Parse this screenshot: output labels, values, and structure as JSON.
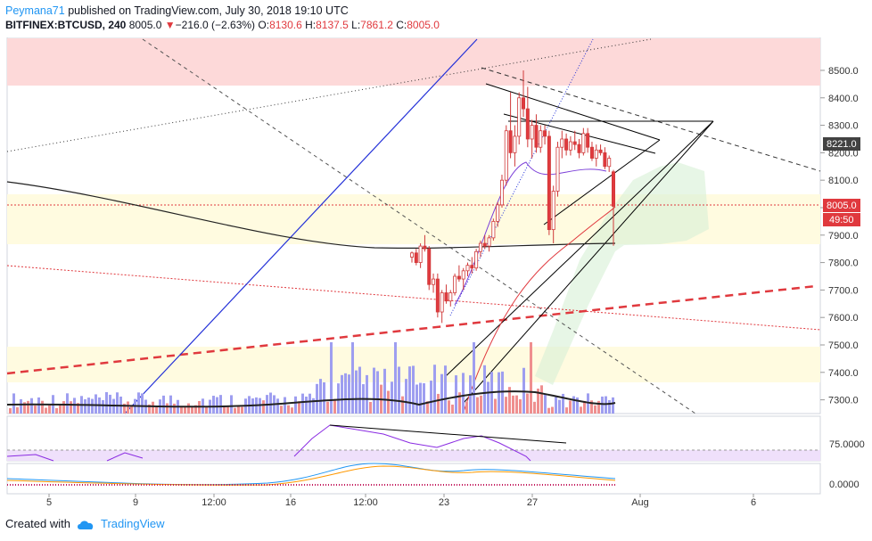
{
  "header": {
    "author": "Peymana71",
    "published_text": "published on TradingView.com, July 30, 2018 19:10 UTC",
    "symbol": "BITFINEX:BTCUSD, 240",
    "last": "8005.0",
    "change": "−216.0 (−2.63%)",
    "o_label": "O:",
    "o": "8130.6",
    "h_label": "H:",
    "h": "8137.5",
    "l_label": "L:",
    "l": "7861.2",
    "c_label": "C:",
    "c": "8005.0"
  },
  "footer": {
    "created_with": "Created with",
    "brand": "TradingView",
    "icon": "tradingview-cloud-icon"
  },
  "colors": {
    "up": "#2962ff",
    "down": "#e0393e",
    "bull_bar": "#9e9ef0",
    "bear_bar": "#ef8f8f",
    "accent": "#2196f3"
  },
  "chart_data": {
    "type": "candlestick",
    "symbol": "BITFINEX:BTCUSD",
    "interval": "240",
    "y_ticks": [
      "8500.0",
      "8400.0",
      "8300.0",
      "8200.0",
      "8100.0",
      "8000.0",
      "7900.0",
      "7800.0",
      "7700.0",
      "7600.0",
      "7500.0",
      "7400.0",
      "7300.0"
    ],
    "ylim": [
      7250,
      8620
    ],
    "x_ticks": [
      "5",
      "9",
      "12:00",
      "16",
      "12:00",
      "23",
      "27",
      "Aug",
      "6"
    ],
    "price_labels": {
      "level_8221": "8221.0",
      "last": "8005.0",
      "countdown": "49:50"
    },
    "rsi_ticks": [
      "75.0000"
    ],
    "macd_ticks": [
      "0.0000"
    ],
    "candles": [
      [
        7820,
        7840,
        7800,
        7835
      ],
      [
        7835,
        7850,
        7790,
        7800
      ],
      [
        7800,
        7870,
        7780,
        7860
      ],
      [
        7860,
        7900,
        7840,
        7850
      ],
      [
        7850,
        7860,
        7700,
        7720
      ],
      [
        7720,
        7760,
        7690,
        7740
      ],
      [
        7740,
        7760,
        7600,
        7620
      ],
      [
        7620,
        7700,
        7580,
        7690
      ],
      [
        7690,
        7720,
        7650,
        7660
      ],
      [
        7660,
        7700,
        7640,
        7690
      ],
      [
        7690,
        7760,
        7680,
        7750
      ],
      [
        7750,
        7790,
        7730,
        7740
      ],
      [
        7740,
        7780,
        7700,
        7770
      ],
      [
        7770,
        7800,
        7750,
        7790
      ],
      [
        7790,
        7820,
        7760,
        7780
      ],
      [
        7780,
        7850,
        7770,
        7840
      ],
      [
        7840,
        7880,
        7820,
        7870
      ],
      [
        7870,
        7900,
        7850,
        7860
      ],
      [
        7860,
        7900,
        7840,
        7890
      ],
      [
        7890,
        7960,
        7880,
        7950
      ],
      [
        7950,
        8020,
        7930,
        8010
      ],
      [
        8010,
        8120,
        8000,
        8100
      ],
      [
        8100,
        8300,
        8080,
        8280
      ],
      [
        8280,
        8420,
        8180,
        8200
      ],
      [
        8200,
        8300,
        8150,
        8260
      ],
      [
        8260,
        8420,
        8230,
        8400
      ],
      [
        8400,
        8500,
        8330,
        8360
      ],
      [
        8360,
        8440,
        8220,
        8250
      ],
      [
        8250,
        8320,
        8180,
        8300
      ],
      [
        8300,
        8340,
        8200,
        8220
      ],
      [
        8220,
        8300,
        8200,
        8280
      ],
      [
        8280,
        8300,
        8230,
        8260
      ],
      [
        8260,
        8280,
        7900,
        7920
      ],
      [
        7920,
        8080,
        7870,
        8060
      ],
      [
        8060,
        8240,
        8040,
        8220
      ],
      [
        8220,
        8280,
        8180,
        8250
      ],
      [
        8250,
        8270,
        8190,
        8210
      ],
      [
        8210,
        8260,
        8190,
        8240
      ],
      [
        8240,
        8280,
        8210,
        8230
      ],
      [
        8230,
        8250,
        8180,
        8200
      ],
      [
        8200,
        8290,
        8190,
        8270
      ],
      [
        8270,
        8290,
        8200,
        8220
      ],
      [
        8220,
        8240,
        8170,
        8180
      ],
      [
        8180,
        8230,
        8150,
        8210
      ],
      [
        8210,
        8230,
        8190,
        8200
      ],
      [
        8200,
        8220,
        8140,
        8150
      ],
      [
        8150,
        8190,
        8130,
        8180
      ],
      [
        8130.6,
        8137.5,
        7861.2,
        8005.0
      ]
    ],
    "annotations": [
      "ichimoku cloud",
      "support/resistance zones",
      "trend lines",
      "rising wedge",
      "RSI divergence line"
    ]
  }
}
